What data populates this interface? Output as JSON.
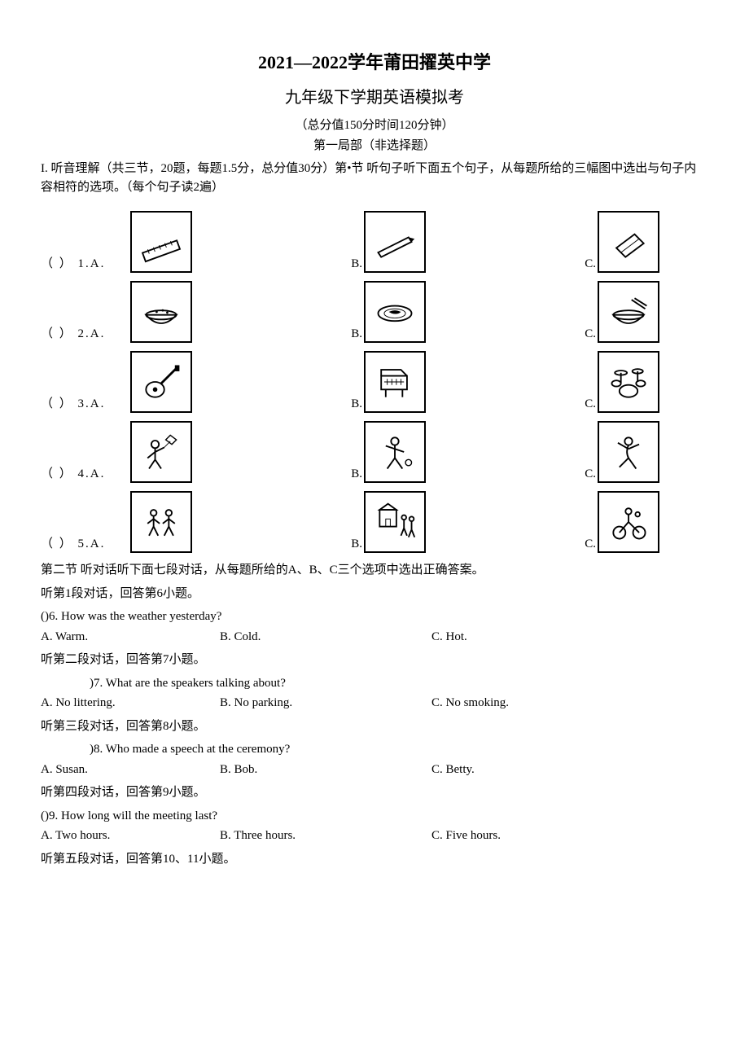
{
  "header": {
    "title_main": "2021—2022学年莆田擢英中学",
    "title_sub": "九年级下学期英语模拟考",
    "meta": "（总分值150分时间120分钟）",
    "section": "第一局部（非选择题）",
    "instructions": "I. 听音理解（共三节，20题，每题1.5分，总分值30分）第•节 听句子听下面五个句子，从每题所给的三幅图中选出与句子内容相符的选项。（每个句子读2遍）"
  },
  "picture_questions": [
    {
      "num": "1",
      "icons": [
        "ruler",
        "pencil",
        "eraser"
      ]
    },
    {
      "num": "2",
      "icons": [
        "rice-bowl",
        "plate",
        "noodle-bowl"
      ]
    },
    {
      "num": "3",
      "icons": [
        "guitar",
        "piano",
        "drums"
      ]
    },
    {
      "num": "4",
      "icons": [
        "kite-kid",
        "play-kid",
        "dance-kid"
      ]
    },
    {
      "num": "5",
      "icons": [
        "two-kids",
        "school-kids",
        "ride-kids"
      ]
    }
  ],
  "section2_intro": "第二节 听对话听下面七段对话，从每题所给的A、B、C三个选项中选出正确答案。",
  "dialogs": [
    {
      "pre": "听第1段对话，回答第6小题。",
      "q_prefix": "()6. ",
      "q": "How was the weather yesterday?",
      "a": "A. Warm.",
      "b": "B. Cold.",
      "c": "C. Hot.",
      "post": "听第二段对话，回答第7小题。",
      "indent": false
    },
    {
      "pre": "",
      "q_prefix": ")7. ",
      "q": "What are the speakers talking about?",
      "a": "A. No littering.",
      "b": "B. No parking.",
      "c": "C. No smoking.",
      "post": "听第三段对话，回答第8小题。",
      "indent": true
    },
    {
      "pre": "",
      "q_prefix": ")8. ",
      "q": "Who made a speech at the ceremony?",
      "a": "A. Susan.",
      "b": "B. Bob.",
      "c": "C. Betty.",
      "post": "听第四段对话，回答第9小题。",
      "indent": true
    },
    {
      "pre": "",
      "q_prefix": "()9. ",
      "q": "How long will the meeting last?",
      "a": "A. Two hours.",
      "b": "B. Three hours.",
      "c": "C. Five hours.",
      "post": "听第五段对话，回答第10、11小题。",
      "indent": false
    }
  ],
  "labels": {
    "paren": "（       ）",
    "A": "A.",
    "B": "B.",
    "C": "C."
  }
}
